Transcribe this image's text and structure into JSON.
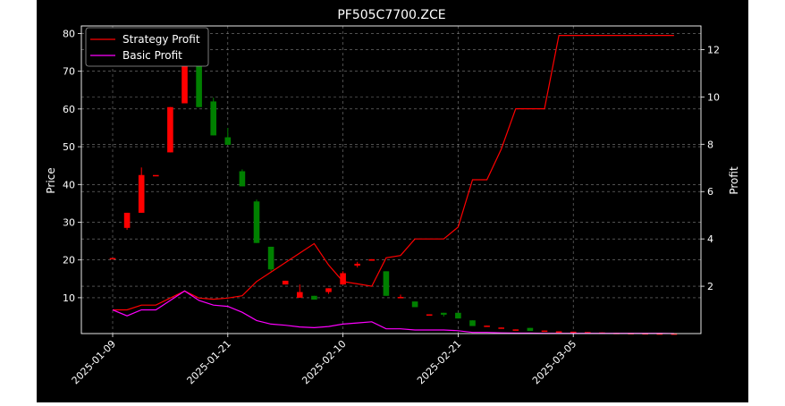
{
  "chart_data": {
    "type": "candlestick+line",
    "title": "PF505C7700.ZCE",
    "xlabel": "",
    "ylabel_left": "Price",
    "ylabel_right": "Profit",
    "ylim_left": [
      0.5,
      82
    ],
    "ylim_right": [
      0,
      13
    ],
    "yticks_left": [
      10,
      20,
      30,
      40,
      50,
      60,
      70,
      80
    ],
    "yticks_right": [
      2,
      4,
      6,
      8,
      10,
      12
    ],
    "xtick_labels": [
      "2025-01-09",
      "2025-01-21",
      "2025-02-10",
      "2025-02-21",
      "2025-03-05"
    ],
    "grid": true,
    "legend_position": "top-left",
    "colors": {
      "background": "#000000",
      "up_candle": "#ff0000",
      "down_candle": "#008000",
      "strategy_line": "#ff0000",
      "basic_line": "#ff00ff",
      "grid": "#808080",
      "text": "#ffffff"
    },
    "candles": [
      {
        "i": 0,
        "open": 20.5,
        "close": 20.5,
        "high": 20.5,
        "low": 20.5
      },
      {
        "i": 1,
        "open": 28.5,
        "close": 32.5,
        "high": 32.5,
        "low": 28.0
      },
      {
        "i": 2,
        "open": 32.5,
        "close": 42.5,
        "high": 44.5,
        "low": 32.5
      },
      {
        "i": 3,
        "open": 42.5,
        "close": 42.5,
        "high": 42.5,
        "low": 42.5
      },
      {
        "i": 4,
        "open": 48.5,
        "close": 60.5,
        "high": 60.5,
        "low": 48.5
      },
      {
        "i": 5,
        "open": 61.5,
        "close": 80.5,
        "high": 80.5,
        "low": 61.5
      },
      {
        "i": 6,
        "open": 75.0,
        "close": 60.5,
        "high": 75.0,
        "low": 60.5
      },
      {
        "i": 7,
        "open": 62.0,
        "close": 53.0,
        "high": 63.0,
        "low": 53.0
      },
      {
        "i": 8,
        "open": 52.5,
        "close": 50.5,
        "high": 55.0,
        "low": 50.5
      },
      {
        "i": 9,
        "open": 43.5,
        "close": 39.5,
        "high": 44.0,
        "low": 39.5
      },
      {
        "i": 10,
        "open": 35.5,
        "close": 24.5,
        "high": 36.0,
        "low": 24.5
      },
      {
        "i": 11,
        "open": 23.5,
        "close": 17.5,
        "high": 23.5,
        "low": 17.0
      },
      {
        "i": 12,
        "open": 13.5,
        "close": 14.5,
        "high": 14.5,
        "low": 13.5
      },
      {
        "i": 13,
        "open": 10.0,
        "close": 11.5,
        "high": 13.5,
        "low": 10.0
      },
      {
        "i": 14,
        "open": 10.5,
        "close": 9.5,
        "high": 10.5,
        "low": 9.5
      },
      {
        "i": 15,
        "open": 11.5,
        "close": 12.5,
        "high": 12.5,
        "low": 11.0
      },
      {
        "i": 16,
        "open": 13.5,
        "close": 16.5,
        "high": 17.0,
        "low": 13.5
      },
      {
        "i": 17,
        "open": 18.5,
        "close": 19.0,
        "high": 19.5,
        "low": 18.0
      },
      {
        "i": 18,
        "open": 19.8,
        "close": 20.2,
        "high": 20.2,
        "low": 19.8
      },
      {
        "i": 19,
        "open": 17.0,
        "close": 10.5,
        "high": 17.0,
        "low": 10.5
      },
      {
        "i": 20,
        "open": 10.0,
        "close": 10.2,
        "high": 10.8,
        "low": 10.0
      },
      {
        "i": 21,
        "open": 9.0,
        "close": 7.5,
        "high": 9.0,
        "low": 7.5
      },
      {
        "i": 22,
        "open": 5.5,
        "close": 5.6,
        "high": 5.6,
        "low": 5.5
      },
      {
        "i": 23,
        "open": 6.0,
        "close": 5.5,
        "high": 6.0,
        "low": 5.0
      },
      {
        "i": 24,
        "open": 6.0,
        "close": 4.5,
        "high": 6.0,
        "low": 4.5
      },
      {
        "i": 25,
        "open": 4.0,
        "close": 2.5,
        "high": 4.0,
        "low": 2.5
      },
      {
        "i": 26,
        "open": 2.5,
        "close": 2.6,
        "high": 2.6,
        "low": 2.5
      },
      {
        "i": 27,
        "open": 2.0,
        "close": 2.1,
        "high": 2.1,
        "low": 2.0
      },
      {
        "i": 28,
        "open": 1.5,
        "close": 1.6,
        "high": 1.6,
        "low": 1.5
      },
      {
        "i": 29,
        "open": 2.0,
        "close": 1.2,
        "high": 2.0,
        "low": 1.2
      },
      {
        "i": 30,
        "open": 1.2,
        "close": 1.3,
        "high": 1.3,
        "low": 1.2
      },
      {
        "i": 31,
        "open": 1.0,
        "close": 1.1,
        "high": 1.1,
        "low": 1.0
      },
      {
        "i": 32,
        "open": 0.9,
        "close": 1.0,
        "high": 1.0,
        "low": 0.9
      },
      {
        "i": 33,
        "open": 0.8,
        "close": 0.9,
        "high": 0.9,
        "low": 0.8
      },
      {
        "i": 34,
        "open": 0.7,
        "close": 0.8,
        "high": 0.8,
        "low": 0.7
      },
      {
        "i": 35,
        "open": 0.6,
        "close": 0.7,
        "high": 0.7,
        "low": 0.6
      },
      {
        "i": 36,
        "open": 0.6,
        "close": 0.65,
        "high": 0.65,
        "low": 0.6
      },
      {
        "i": 37,
        "open": 0.55,
        "close": 0.6,
        "high": 0.6,
        "low": 0.55
      },
      {
        "i": 38,
        "open": 0.5,
        "close": 0.55,
        "high": 0.55,
        "low": 0.5
      },
      {
        "i": 39,
        "open": 0.5,
        "close": 0.52,
        "high": 0.52,
        "low": 0.5
      }
    ],
    "series": [
      {
        "name": "Strategy Profit",
        "axis": "right",
        "values": [
          1.0,
          1.0,
          1.2,
          1.2,
          1.5,
          1.8,
          1.5,
          1.45,
          1.5,
          1.6,
          2.2,
          2.6,
          3.0,
          3.4,
          3.8,
          2.9,
          2.2,
          2.1,
          2.0,
          3.2,
          3.3,
          4.0,
          4.0,
          4.0,
          4.5,
          6.5,
          6.5,
          7.8,
          9.5,
          9.5,
          9.5,
          12.6,
          12.6,
          12.6,
          12.6,
          12.6,
          12.6,
          12.6,
          12.6,
          12.6
        ]
      },
      {
        "name": "Basic Profit",
        "axis": "right",
        "values": [
          1.0,
          0.75,
          1.0,
          1.0,
          1.4,
          1.8,
          1.4,
          1.2,
          1.15,
          0.9,
          0.55,
          0.4,
          0.35,
          0.28,
          0.25,
          0.3,
          0.4,
          0.45,
          0.5,
          0.2,
          0.2,
          0.15,
          0.15,
          0.15,
          0.12,
          0.05,
          0.05,
          0.03,
          0.02,
          0.02,
          0.01,
          0.01,
          0.01,
          0.01,
          0.01,
          0.01,
          0.01,
          0.01,
          0.01,
          0.0
        ]
      }
    ]
  }
}
